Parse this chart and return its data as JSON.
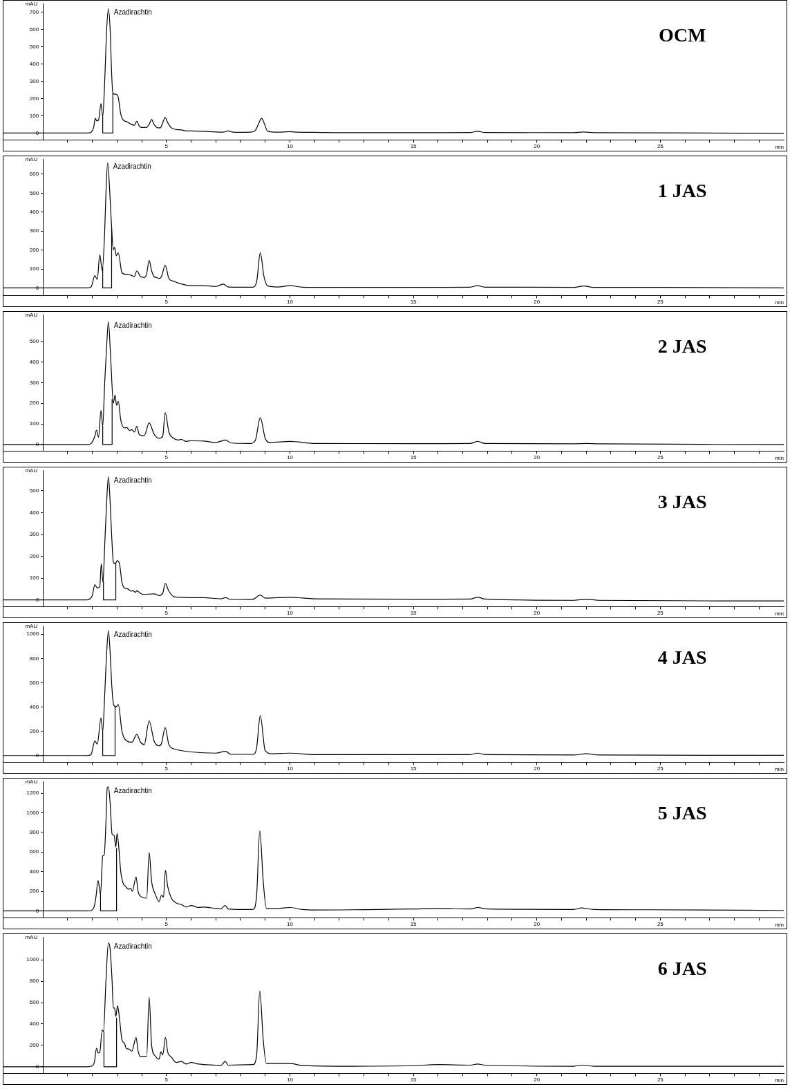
{
  "chart_data": [
    {
      "type": "line",
      "title": "OCM",
      "xlabel": "min",
      "ylabel": "mAU",
      "xlim": [
        -1.6,
        30
      ],
      "ylim": [
        -40,
        750
      ],
      "yticks": [
        0,
        100,
        200,
        300,
        400,
        500,
        600,
        700
      ],
      "xticks": [
        {
          "value": 1,
          "label": null
        },
        {
          "value": 2,
          "label": null
        },
        {
          "value": 3,
          "label": null
        },
        {
          "value": 4,
          "label": null
        },
        5,
        {
          "value": 6,
          "label": null
        },
        {
          "value": 7,
          "label": null
        },
        {
          "value": 8,
          "label": null
        },
        {
          "value": 9,
          "label": null
        },
        10,
        {
          "value": 11,
          "label": null
        },
        {
          "value": 12,
          "label": null
        },
        {
          "value": 13,
          "label": null
        },
        {
          "value": 14,
          "label": null
        },
        15,
        {
          "value": 16,
          "label": null
        },
        {
          "value": 17,
          "label": null
        },
        {
          "value": 18,
          "label": null
        },
        {
          "value": 19,
          "label": null
        },
        20,
        {
          "value": 21,
          "label": null
        },
        {
          "value": 22,
          "label": null
        },
        {
          "value": 23,
          "label": null
        },
        {
          "value": 24,
          "label": null
        },
        25,
        {
          "value": 26,
          "label": null
        },
        {
          "value": 27,
          "label": null
        },
        {
          "value": 28,
          "label": null
        },
        {
          "value": 29,
          "label": null
        }
      ],
      "annotations": [
        "Azadirachtin"
      ],
      "series": [
        {
          "type": "line",
          "color": "#000000",
          "x": [
            -1.6,
            1.8,
            1.95,
            2.05,
            2.12,
            2.18,
            2.25,
            2.35,
            2.42,
            2.5,
            2.58,
            2.65,
            2.72,
            2.78,
            2.83,
            2.95,
            3.05,
            3.15,
            3.25,
            3.4,
            3.55,
            3.7,
            3.8,
            3.9,
            4.0,
            4.2,
            4.3,
            4.4,
            4.5,
            4.65,
            4.75,
            4.85,
            4.95,
            5.05,
            5.2,
            5.4,
            5.6,
            5.8,
            6.0,
            6.5,
            7.0,
            7.3,
            7.5,
            7.7,
            8.0,
            8.4,
            8.6,
            8.75,
            8.85,
            8.95,
            9.1,
            9.5,
            10.0,
            10.3,
            11,
            12,
            15,
            17.3,
            17.6,
            17.9,
            21.5,
            21.9,
            22.3,
            25,
            30
          ],
          "values": [
            0,
            0,
            5,
            30,
            85,
            70,
            75,
            170,
            95,
            300,
            600,
            720,
            600,
            350,
            230,
            225,
            205,
            110,
            75,
            65,
            52,
            45,
            68,
            40,
            32,
            33,
            50,
            78,
            50,
            30,
            30,
            60,
            90,
            60,
            30,
            20,
            18,
            12,
            12,
            10,
            6,
            5,
            12,
            5,
            4,
            5,
            15,
            60,
            85,
            60,
            10,
            5,
            8,
            5,
            4,
            2,
            2,
            3,
            10,
            3,
            2,
            6,
            2,
            1,
            -2
          ]
        },
        {
          "type": "line",
          "color": "#000000",
          "x": [
            2.42,
            2.42,
            2.83,
            2.83
          ],
          "values": [
            95,
            0,
            0,
            230
          ]
        }
      ]
    },
    {
      "type": "line",
      "title": "1 JAS",
      "xlabel": "min",
      "ylabel": "mAU",
      "xlim": [
        -1.6,
        30
      ],
      "ylim": [
        -40,
        680
      ],
      "yticks": [
        0,
        100,
        200,
        300,
        400,
        500,
        600
      ],
      "xticks": [
        {
          "value": 1,
          "label": null
        },
        {
          "value": 2,
          "label": null
        },
        {
          "value": 3,
          "label": null
        },
        {
          "value": 4,
          "label": null
        },
        5,
        {
          "value": 6,
          "label": null
        },
        {
          "value": 7,
          "label": null
        },
        {
          "value": 8,
          "label": null
        },
        {
          "value": 9,
          "label": null
        },
        10,
        {
          "value": 11,
          "label": null
        },
        {
          "value": 12,
          "label": null
        },
        {
          "value": 13,
          "label": null
        },
        {
          "value": 14,
          "label": null
        },
        15,
        {
          "value": 16,
          "label": null
        },
        {
          "value": 17,
          "label": null
        },
        {
          "value": 18,
          "label": null
        },
        {
          "value": 19,
          "label": null
        },
        20,
        {
          "value": 21,
          "label": null
        },
        {
          "value": 22,
          "label": null
        },
        {
          "value": 23,
          "label": null
        },
        {
          "value": 24,
          "label": null
        },
        25,
        {
          "value": 26,
          "label": null
        },
        {
          "value": 27,
          "label": null
        },
        {
          "value": 28,
          "label": null
        },
        {
          "value": 29,
          "label": null
        }
      ],
      "annotations": [
        "Azadirachtin"
      ],
      "series": [
        {
          "type": "line",
          "color": "#000000",
          "x": [
            -1.6,
            1.8,
            1.95,
            2.1,
            2.2,
            2.3,
            2.4,
            2.5,
            2.55,
            2.62,
            2.7,
            2.78,
            2.85,
            2.9,
            2.97,
            3.05,
            3.2,
            3.35,
            3.5,
            3.6,
            3.7,
            3.8,
            3.95,
            4.1,
            4.2,
            4.3,
            4.4,
            4.5,
            4.6,
            4.7,
            4.8,
            4.95,
            5.1,
            5.3,
            5.5,
            5.8,
            6.0,
            6.5,
            7.0,
            7.3,
            7.5,
            8.0,
            8.5,
            8.65,
            8.8,
            8.95,
            9.1,
            9.5,
            10.0,
            10.5,
            11,
            15,
            17.3,
            17.6,
            17.9,
            21.5,
            21.9,
            22.3,
            25,
            30
          ],
          "values": [
            0,
            0,
            5,
            65,
            45,
            175,
            90,
            300,
            500,
            660,
            520,
            320,
            200,
            215,
            170,
            185,
            80,
            72,
            70,
            65,
            60,
            90,
            60,
            55,
            75,
            145,
            90,
            60,
            55,
            50,
            60,
            120,
            50,
            35,
            25,
            15,
            12,
            12,
            8,
            20,
            5,
            4,
            4,
            30,
            185,
            60,
            10,
            5,
            12,
            4,
            3,
            3,
            4,
            12,
            4,
            3,
            10,
            3,
            3,
            0
          ]
        },
        {
          "type": "line",
          "color": "#000000",
          "x": [
            2.42,
            2.42,
            2.78,
            2.78
          ],
          "values": [
            110,
            0,
            0,
            320
          ]
        }
      ]
    },
    {
      "type": "line",
      "title": "2 JAS",
      "xlabel": "min",
      "ylabel": "mAU",
      "xlim": [
        -1.6,
        30
      ],
      "ylim": [
        -32,
        630
      ],
      "yticks": [
        0,
        100,
        200,
        300,
        400,
        500
      ],
      "xticks": [
        {
          "value": 1,
          "label": null
        },
        {
          "value": 2,
          "label": null
        },
        {
          "value": 3,
          "label": null
        },
        {
          "value": 4,
          "label": null
        },
        5,
        {
          "value": 6,
          "label": null
        },
        {
          "value": 7,
          "label": null
        },
        {
          "value": 8,
          "label": null
        },
        {
          "value": 9,
          "label": null
        },
        10,
        {
          "value": 11,
          "label": null
        },
        {
          "value": 12,
          "label": null
        },
        {
          "value": 13,
          "label": null
        },
        {
          "value": 14,
          "label": null
        },
        15,
        {
          "value": 16,
          "label": null
        },
        {
          "value": 17,
          "label": null
        },
        {
          "value": 18,
          "label": null
        },
        {
          "value": 19,
          "label": null
        },
        20,
        {
          "value": 21,
          "label": null
        },
        {
          "value": 22,
          "label": null
        },
        {
          "value": 23,
          "label": null
        },
        {
          "value": 24,
          "label": null
        },
        25,
        {
          "value": 26,
          "label": null
        },
        {
          "value": 27,
          "label": null
        },
        {
          "value": 28,
          "label": null
        },
        {
          "value": 29,
          "label": null
        }
      ],
      "annotations": [
        "Azadirachtin"
      ],
      "series": [
        {
          "type": "line",
          "color": "#000000",
          "x": [
            -1.6,
            1.8,
            1.95,
            2.1,
            2.17,
            2.25,
            2.35,
            2.42,
            2.5,
            2.58,
            2.65,
            2.75,
            2.85,
            2.92,
            2.98,
            3.05,
            3.15,
            3.3,
            3.4,
            3.5,
            3.6,
            3.7,
            3.8,
            3.9,
            4.1,
            4.3,
            4.5,
            4.7,
            4.85,
            4.95,
            5.1,
            5.3,
            5.5,
            5.6,
            5.8,
            6.0,
            6.5,
            7.0,
            7.4,
            7.6,
            8.4,
            8.6,
            8.8,
            9.0,
            9.2,
            10,
            11,
            15,
            17.3,
            17.6,
            17.9,
            21.5,
            22,
            22.5,
            30
          ],
          "values": [
            0,
            0,
            5,
            40,
            70,
            35,
            165,
            90,
            300,
            480,
            595,
            400,
            200,
            240,
            190,
            210,
            120,
            80,
            82,
            68,
            72,
            60,
            88,
            48,
            42,
            105,
            50,
            30,
            40,
            155,
            60,
            30,
            22,
            25,
            15,
            18,
            17,
            10,
            22,
            8,
            5,
            20,
            130,
            30,
            10,
            15,
            5,
            4,
            5,
            15,
            5,
            3,
            5,
            3,
            0
          ]
        },
        {
          "type": "line",
          "color": "#000000",
          "x": [
            2.42,
            2.42,
            2.8,
            2.8
          ],
          "values": [
            90,
            0,
            0,
            220
          ]
        }
      ]
    },
    {
      "type": "line",
      "title": "3 JAS",
      "xlabel": "min",
      "ylabel": "mAU",
      "xlim": [
        -1.6,
        30
      ],
      "ylim": [
        -31,
        595
      ],
      "yticks": [
        0,
        100,
        200,
        300,
        400,
        500
      ],
      "xticks": [
        {
          "value": 1,
          "label": null
        },
        {
          "value": 2,
          "label": null
        },
        {
          "value": 3,
          "label": null
        },
        {
          "value": 4,
          "label": null
        },
        5,
        {
          "value": 6,
          "label": null
        },
        {
          "value": 7,
          "label": null
        },
        {
          "value": 8,
          "label": null
        },
        {
          "value": 9,
          "label": null
        },
        10,
        {
          "value": 11,
          "label": null
        },
        {
          "value": 12,
          "label": null
        },
        {
          "value": 13,
          "label": null
        },
        {
          "value": 14,
          "label": null
        },
        15,
        {
          "value": 16,
          "label": null
        },
        {
          "value": 17,
          "label": null
        },
        {
          "value": 18,
          "label": null
        },
        {
          "value": 19,
          "label": null
        },
        20,
        {
          "value": 21,
          "label": null
        },
        {
          "value": 22,
          "label": null
        },
        {
          "value": 23,
          "label": null
        },
        {
          "value": 24,
          "label": null
        },
        25,
        {
          "value": 26,
          "label": null
        },
        {
          "value": 27,
          "label": null
        },
        {
          "value": 28,
          "label": null
        },
        {
          "value": 29,
          "label": null
        }
      ],
      "annotations": [
        "Azadirachtin"
      ],
      "series": [
        {
          "type": "line",
          "color": "#000000",
          "x": [
            -1.6,
            1.8,
            1.9,
            2.0,
            2.1,
            2.2,
            2.3,
            2.36,
            2.43,
            2.5,
            2.58,
            2.65,
            2.72,
            2.78,
            2.85,
            2.93,
            3.0,
            3.1,
            3.2,
            3.3,
            3.45,
            3.55,
            3.65,
            3.75,
            3.8,
            3.95,
            4.1,
            4.5,
            4.7,
            4.85,
            4.95,
            5.1,
            5.3,
            5.6,
            6.0,
            6.5,
            7.2,
            7.4,
            7.6,
            8.5,
            8.8,
            9.0,
            10,
            11,
            15,
            17.3,
            17.6,
            17.9,
            21.5,
            22,
            22.5,
            30
          ],
          "values": [
            0,
            0,
            5,
            20,
            70,
            55,
            60,
            165,
            80,
            250,
            450,
            565,
            450,
            300,
            175,
            165,
            180,
            165,
            80,
            55,
            50,
            40,
            42,
            35,
            42,
            30,
            25,
            28,
            20,
            30,
            75,
            40,
            15,
            12,
            10,
            10,
            5,
            10,
            2,
            3,
            22,
            8,
            12,
            5,
            3,
            4,
            12,
            4,
            -2,
            3,
            -2,
            -5
          ]
        },
        {
          "type": "line",
          "color": "#000000",
          "x": [
            2.45,
            2.45,
            2.95,
            2.95
          ],
          "values": [
            85,
            0,
            0,
            170
          ]
        }
      ]
    },
    {
      "type": "line",
      "title": "4 JAS",
      "xlabel": "min",
      "ylabel": "mAU",
      "xlim": [
        -1.6,
        30
      ],
      "ylim": [
        -55,
        1070
      ],
      "yticks": [
        0,
        200,
        400,
        600,
        800,
        1000
      ],
      "xticks": [
        {
          "value": 1,
          "label": null
        },
        {
          "value": 2,
          "label": null
        },
        {
          "value": 3,
          "label": null
        },
        {
          "value": 4,
          "label": null
        },
        5,
        {
          "value": 6,
          "label": null
        },
        {
          "value": 7,
          "label": null
        },
        {
          "value": 8,
          "label": null
        },
        {
          "value": 9,
          "label": null
        },
        10,
        {
          "value": 11,
          "label": null
        },
        {
          "value": 12,
          "label": null
        },
        {
          "value": 13,
          "label": null
        },
        {
          "value": 14,
          "label": null
        },
        15,
        {
          "value": 16,
          "label": null
        },
        {
          "value": 17,
          "label": null
        },
        {
          "value": 18,
          "label": null
        },
        {
          "value": 19,
          "label": null
        },
        20,
        {
          "value": 21,
          "label": null
        },
        {
          "value": 22,
          "label": null
        },
        {
          "value": 23,
          "label": null
        },
        {
          "value": 24,
          "label": null
        },
        25,
        {
          "value": 26,
          "label": null
        },
        {
          "value": 27,
          "label": null
        },
        {
          "value": 28,
          "label": null
        },
        {
          "value": 29,
          "label": null
        }
      ],
      "annotations": [
        "Azadirachtin"
      ],
      "series": [
        {
          "type": "line",
          "color": "#000000",
          "x": [
            -1.6,
            1.8,
            1.95,
            2.1,
            2.2,
            2.35,
            2.42,
            2.5,
            2.58,
            2.65,
            2.72,
            2.78,
            2.85,
            2.95,
            3.05,
            3.2,
            3.4,
            3.6,
            3.8,
            3.95,
            4.1,
            4.3,
            4.5,
            4.7,
            4.8,
            4.95,
            5.1,
            5.4,
            6.0,
            7.0,
            7.4,
            7.6,
            8.5,
            8.65,
            8.8,
            9.0,
            9.3,
            10,
            11,
            15,
            17.3,
            17.6,
            17.9,
            21.5,
            22,
            22.5,
            30
          ],
          "values": [
            0,
            0,
            10,
            120,
            95,
            310,
            200,
            500,
            850,
            1030,
            850,
            600,
            430,
            400,
            420,
            200,
            120,
            110,
            175,
            110,
            90,
            285,
            120,
            80,
            100,
            230,
            90,
            50,
            30,
            20,
            35,
            10,
            10,
            60,
            330,
            40,
            15,
            20,
            8,
            8,
            8,
            20,
            8,
            5,
            15,
            5,
            2
          ]
        },
        {
          "type": "line",
          "color": "#000000",
          "x": [
            2.42,
            2.42,
            2.92,
            2.92
          ],
          "values": [
            200,
            0,
            0,
            410
          ]
        }
      ]
    },
    {
      "type": "line",
      "title": "5 JAS",
      "xlabel": "min",
      "ylabel": "mAU",
      "xlim": [
        -1.6,
        30
      ],
      "ylim": [
        -70,
        1320
      ],
      "yticks": [
        0,
        200,
        400,
        600,
        800,
        1000,
        1200
      ],
      "xticks": [
        {
          "value": 1,
          "label": null
        },
        {
          "value": 2,
          "label": null
        },
        {
          "value": 3,
          "label": null
        },
        {
          "value": 4,
          "label": null
        },
        5,
        {
          "value": 6,
          "label": null
        },
        {
          "value": 7,
          "label": null
        },
        {
          "value": 8,
          "label": null
        },
        {
          "value": 9,
          "label": null
        },
        10,
        {
          "value": 11,
          "label": null
        },
        {
          "value": 12,
          "label": null
        },
        {
          "value": 13,
          "label": null
        },
        {
          "value": 14,
          "label": null
        },
        15,
        {
          "value": 16,
          "label": null
        },
        {
          "value": 17,
          "label": null
        },
        {
          "value": 18,
          "label": null
        },
        {
          "value": 19,
          "label": null
        },
        20,
        {
          "value": 21,
          "label": null
        },
        {
          "value": 22,
          "label": null
        },
        {
          "value": 23,
          "label": null
        },
        {
          "value": 24,
          "label": null
        },
        25,
        {
          "value": 26,
          "label": null
        },
        {
          "value": 27,
          "label": null
        },
        {
          "value": 28,
          "label": null
        },
        {
          "value": 29,
          "label": null
        }
      ],
      "annotations": [
        "Azadirachtin"
      ],
      "series": [
        {
          "type": "line",
          "color": "#000000",
          "x": [
            -1.6,
            1.8,
            1.95,
            2.08,
            2.15,
            2.23,
            2.33,
            2.42,
            2.48,
            2.55,
            2.6,
            2.65,
            2.72,
            2.8,
            2.88,
            2.95,
            3.0,
            3.07,
            3.15,
            3.25,
            3.35,
            3.45,
            3.55,
            3.62,
            3.77,
            3.85,
            3.95,
            4.2,
            4.3,
            4.4,
            4.55,
            4.7,
            4.8,
            4.88,
            4.96,
            5.05,
            5.2,
            5.4,
            5.6,
            5.8,
            6.0,
            6.3,
            6.5,
            7.0,
            7.2,
            7.38,
            7.5,
            8.0,
            8.5,
            8.65,
            8.78,
            8.92,
            9.05,
            9.5,
            10,
            10.5,
            11,
            15,
            16,
            17.3,
            17.6,
            18,
            21.5,
            21.8,
            22.3,
            24.5,
            30
          ],
          "values": [
            0,
            0,
            5,
            50,
            150,
            310,
            170,
            560,
            570,
            900,
            1250,
            1265,
            1100,
            780,
            770,
            650,
            790,
            650,
            400,
            280,
            250,
            220,
            230,
            200,
            345,
            200,
            150,
            130,
            595,
            300,
            170,
            95,
            160,
            140,
            415,
            250,
            130,
            80,
            65,
            40,
            55,
            35,
            40,
            25,
            20,
            55,
            20,
            15,
            15,
            150,
            815,
            300,
            25,
            25,
            35,
            15,
            10,
            20,
            25,
            20,
            35,
            20,
            15,
            30,
            15,
            12,
            5
          ]
        },
        {
          "type": "line",
          "color": "#000000",
          "x": [
            2.33,
            2.33,
            2.98,
            2.98
          ],
          "values": [
            170,
            0,
            0,
            640
          ]
        }
      ]
    },
    {
      "type": "line",
      "title": "6 JAS",
      "xlabel": "min",
      "ylabel": "mAU",
      "xlim": [
        -1.6,
        30
      ],
      "ylim": [
        -62,
        1215
      ],
      "yticks": [
        0,
        200,
        400,
        600,
        800,
        1000
      ],
      "xticks": [
        {
          "value": 1,
          "label": null
        },
        {
          "value": 2,
          "label": null
        },
        {
          "value": 3,
          "label": null
        },
        {
          "value": 4,
          "label": null
        },
        5,
        {
          "value": 6,
          "label": null
        },
        {
          "value": 7,
          "label": null
        },
        {
          "value": 8,
          "label": null
        },
        {
          "value": 9,
          "label": null
        },
        10,
        {
          "value": 11,
          "label": null
        },
        {
          "value": 12,
          "label": null
        },
        {
          "value": 13,
          "label": null
        },
        {
          "value": 14,
          "label": null
        },
        15,
        {
          "value": 16,
          "label": null
        },
        {
          "value": 17,
          "label": null
        },
        {
          "value": 18,
          "label": null
        },
        {
          "value": 19,
          "label": null
        },
        20,
        {
          "value": 21,
          "label": null
        },
        {
          "value": 22,
          "label": null
        },
        {
          "value": 23,
          "label": null
        },
        {
          "value": 24,
          "label": null
        },
        25,
        {
          "value": 26,
          "label": null
        },
        {
          "value": 27,
          "label": null
        },
        {
          "value": 28,
          "label": null
        },
        {
          "value": 29,
          "label": null
        }
      ],
      "annotations": [
        "Azadirachtin"
      ],
      "series": [
        {
          "type": "line",
          "color": "#000000",
          "x": [
            -1.6,
            1.8,
            1.95,
            2.08,
            2.17,
            2.23,
            2.3,
            2.4,
            2.45,
            2.55,
            2.65,
            2.72,
            2.8,
            2.85,
            2.9,
            2.95,
            3.02,
            3.1,
            3.2,
            3.3,
            3.38,
            3.48,
            3.6,
            3.77,
            3.85,
            3.95,
            4.2,
            4.3,
            4.4,
            4.55,
            4.7,
            4.78,
            4.85,
            4.96,
            5.05,
            5.2,
            5.4,
            5.6,
            5.8,
            6.0,
            6.3,
            7.0,
            7.2,
            7.38,
            7.5,
            8.5,
            8.65,
            8.78,
            8.92,
            9.05,
            10,
            10.5,
            12,
            15,
            16,
            17.3,
            17.6,
            17.9,
            21.5,
            21.8,
            22.3,
            30
          ],
          "values": [
            0,
            0,
            5,
            40,
            175,
            130,
            135,
            345,
            330,
            800,
            1160,
            1100,
            800,
            550,
            550,
            470,
            570,
            450,
            250,
            220,
            170,
            165,
            145,
            275,
            150,
            95,
            95,
            650,
            200,
            100,
            70,
            140,
            110,
            275,
            140,
            90,
            40,
            50,
            25,
            40,
            25,
            15,
            12,
            50,
            15,
            20,
            100,
            710,
            250,
            30,
            30,
            12,
            5,
            10,
            20,
            15,
            25,
            15,
            5,
            15,
            5,
            5
          ]
        },
        {
          "type": "line",
          "color": "#000000",
          "x": [
            2.47,
            2.47,
            2.98,
            2.98
          ],
          "values": [
            330,
            0,
            0,
            460
          ]
        }
      ]
    }
  ]
}
